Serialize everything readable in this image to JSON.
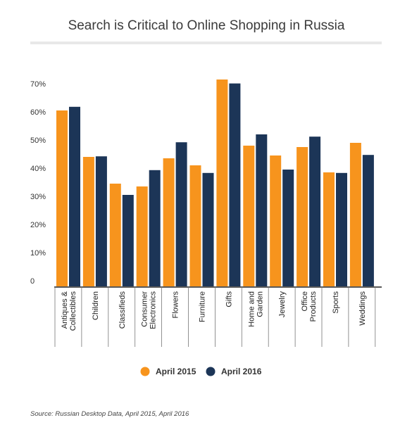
{
  "chart_data": {
    "type": "bar",
    "title": "Search is Critical to Online Shopping in Russia",
    "categories": [
      "Antiques & Collectibles",
      "Children",
      "Classifieds",
      "Consumer Electronics",
      "Flowers",
      "Furniture",
      "Gifts",
      "Home and Garden",
      "Jewelry",
      "Office Products",
      "Sports",
      "Weddings"
    ],
    "category_lines": [
      [
        "Antiques &",
        "Collectibles"
      ],
      [
        "Children"
      ],
      [
        "Classifieds"
      ],
      [
        "Consumer",
        "Electronics"
      ],
      [
        "Flowers"
      ],
      [
        "Furniture"
      ],
      [
        "Gifts"
      ],
      [
        "Home and",
        "Garden"
      ],
      [
        "Jewelry"
      ],
      [
        "Office",
        "Products"
      ],
      [
        "Sports"
      ],
      [
        "Weddings"
      ]
    ],
    "series": [
      {
        "name": "April 2015",
        "color": "#f7941d",
        "values": [
          62.5,
          46,
          36.5,
          35.5,
          45.5,
          43,
          73.5,
          50,
          46.5,
          49.5,
          40.5,
          51
        ]
      },
      {
        "name": "April 2016",
        "color": "#1c3557",
        "values": [
          63.8,
          46.2,
          32.5,
          41.3,
          51.2,
          40.3,
          72.1,
          54,
          41.5,
          53.2,
          40.3,
          46.7
        ]
      }
    ],
    "yticks": [
      "0",
      "10%",
      "20%",
      "30%",
      "40%",
      "50%",
      "60%",
      "70%"
    ],
    "ylim": [
      0,
      72
    ],
    "grid": false,
    "legend_position": "bottom",
    "source": "Source: Russian Desktop Data, April 2015, April 2016"
  }
}
